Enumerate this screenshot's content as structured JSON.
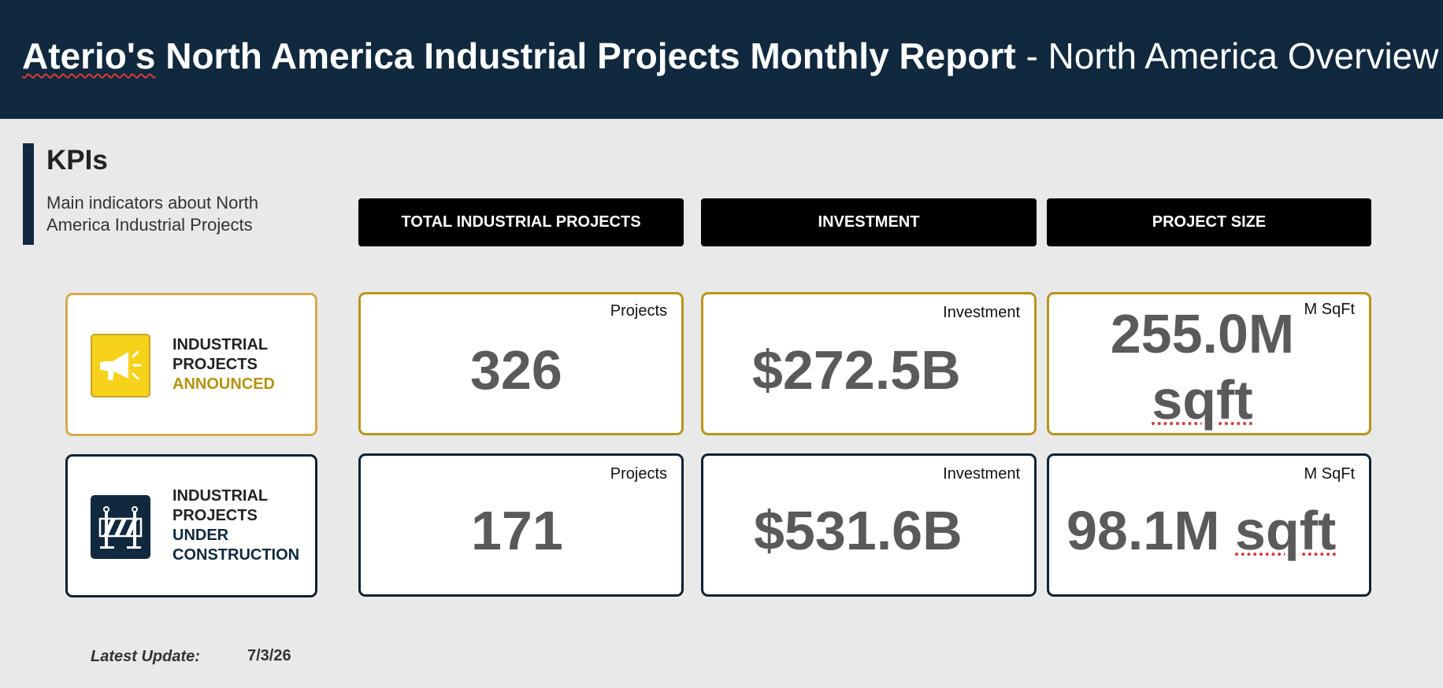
{
  "header": {
    "brand": "Aterio's",
    "title_bold_rest": " North America Industrial Projects Monthly Report",
    "title_suffix": " - North America Overview"
  },
  "kpis": {
    "title": "KPIs",
    "subtitle": "Main indicators about North America Industrial Projects"
  },
  "columns": [
    {
      "label": "TOTAL INDUSTRIAL PROJECTS"
    },
    {
      "label": "INVESTMENT"
    },
    {
      "label": "PROJECT SIZE"
    }
  ],
  "rows": [
    {
      "line1": "INDUSTRIAL",
      "line2": "PROJECTS",
      "accent": "ANNOUNCED",
      "icon": "megaphone-icon",
      "icon_color": "#f6d31a",
      "border_color": "#d8a94a",
      "cards": {
        "projects": {
          "unit": "Projects",
          "value": "326"
        },
        "investment": {
          "unit": "Investment",
          "value": "$272.5B"
        },
        "size": {
          "unit": "M SqFt",
          "value_num": "255.0M",
          "value_unit": "sqft"
        }
      }
    },
    {
      "line1": "INDUSTRIAL",
      "line2": "PROJECTS",
      "accent1": "UNDER",
      "accent2": "CONSTRUCTION",
      "icon": "road-barrier-icon",
      "icon_color": "#10293e",
      "border_color": "#0f2231",
      "cards": {
        "projects": {
          "unit": "Projects",
          "value": "171"
        },
        "investment": {
          "unit": "Investment",
          "value": "$531.6B"
        },
        "size": {
          "unit": "M SqFt",
          "value_num": "98.1M",
          "value_unit": "sqft"
        }
      }
    }
  ],
  "footer": {
    "update_label": "Latest Update:",
    "update_value": "7/3/26"
  },
  "colors": {
    "header_bg": "#10293e",
    "page_bg": "#e9e9ea",
    "gold_accent": "#b5940e",
    "value_gray": "#5a5a5a"
  }
}
